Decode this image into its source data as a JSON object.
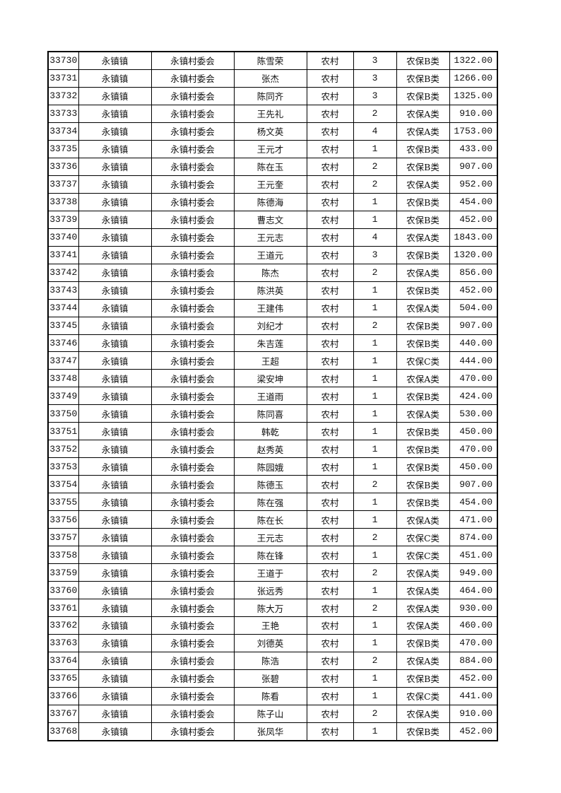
{
  "rows": [
    [
      "33730",
      "永镇镇",
      "永镇村委会",
      "陈雪荣",
      "农村",
      "3",
      "农保B类",
      "1322.00"
    ],
    [
      "33731",
      "永镇镇",
      "永镇村委会",
      "张杰",
      "农村",
      "3",
      "农保B类",
      "1266.00"
    ],
    [
      "33732",
      "永镇镇",
      "永镇村委会",
      "陈同齐",
      "农村",
      "3",
      "农保B类",
      "1325.00"
    ],
    [
      "33733",
      "永镇镇",
      "永镇村委会",
      "王先礼",
      "农村",
      "2",
      "农保A类",
      "910.00"
    ],
    [
      "33734",
      "永镇镇",
      "永镇村委会",
      "杨文英",
      "农村",
      "4",
      "农保A类",
      "1753.00"
    ],
    [
      "33735",
      "永镇镇",
      "永镇村委会",
      "王元才",
      "农村",
      "1",
      "农保B类",
      "433.00"
    ],
    [
      "33736",
      "永镇镇",
      "永镇村委会",
      "陈在玉",
      "农村",
      "2",
      "农保B类",
      "907.00"
    ],
    [
      "33737",
      "永镇镇",
      "永镇村委会",
      "王元奎",
      "农村",
      "2",
      "农保A类",
      "952.00"
    ],
    [
      "33738",
      "永镇镇",
      "永镇村委会",
      "陈德海",
      "农村",
      "1",
      "农保B类",
      "454.00"
    ],
    [
      "33739",
      "永镇镇",
      "永镇村委会",
      "曹志文",
      "农村",
      "1",
      "农保B类",
      "452.00"
    ],
    [
      "33740",
      "永镇镇",
      "永镇村委会",
      "王元志",
      "农村",
      "4",
      "农保A类",
      "1843.00"
    ],
    [
      "33741",
      "永镇镇",
      "永镇村委会",
      "王道元",
      "农村",
      "3",
      "农保B类",
      "1320.00"
    ],
    [
      "33742",
      "永镇镇",
      "永镇村委会",
      "陈杰",
      "农村",
      "2",
      "农保A类",
      "856.00"
    ],
    [
      "33743",
      "永镇镇",
      "永镇村委会",
      "陈洪英",
      "农村",
      "1",
      "农保B类",
      "452.00"
    ],
    [
      "33744",
      "永镇镇",
      "永镇村委会",
      "王建伟",
      "农村",
      "1",
      "农保A类",
      "504.00"
    ],
    [
      "33745",
      "永镇镇",
      "永镇村委会",
      "刘纪才",
      "农村",
      "2",
      "农保B类",
      "907.00"
    ],
    [
      "33746",
      "永镇镇",
      "永镇村委会",
      "朱吉莲",
      "农村",
      "1",
      "农保B类",
      "440.00"
    ],
    [
      "33747",
      "永镇镇",
      "永镇村委会",
      "王超",
      "农村",
      "1",
      "农保C类",
      "444.00"
    ],
    [
      "33748",
      "永镇镇",
      "永镇村委会",
      "梁安坤",
      "农村",
      "1",
      "农保A类",
      "470.00"
    ],
    [
      "33749",
      "永镇镇",
      "永镇村委会",
      "王道雨",
      "农村",
      "1",
      "农保B类",
      "424.00"
    ],
    [
      "33750",
      "永镇镇",
      "永镇村委会",
      "陈同喜",
      "农村",
      "1",
      "农保A类",
      "530.00"
    ],
    [
      "33751",
      "永镇镇",
      "永镇村委会",
      "韩乾",
      "农村",
      "1",
      "农保B类",
      "450.00"
    ],
    [
      "33752",
      "永镇镇",
      "永镇村委会",
      "赵秀英",
      "农村",
      "1",
      "农保B类",
      "470.00"
    ],
    [
      "33753",
      "永镇镇",
      "永镇村委会",
      "陈园娥",
      "农村",
      "1",
      "农保B类",
      "450.00"
    ],
    [
      "33754",
      "永镇镇",
      "永镇村委会",
      "陈德玉",
      "农村",
      "2",
      "农保B类",
      "907.00"
    ],
    [
      "33755",
      "永镇镇",
      "永镇村委会",
      "陈在强",
      "农村",
      "1",
      "农保B类",
      "454.00"
    ],
    [
      "33756",
      "永镇镇",
      "永镇村委会",
      "陈在长",
      "农村",
      "1",
      "农保A类",
      "471.00"
    ],
    [
      "33757",
      "永镇镇",
      "永镇村委会",
      "王元志",
      "农村",
      "2",
      "农保C类",
      "874.00"
    ],
    [
      "33758",
      "永镇镇",
      "永镇村委会",
      "陈在锋",
      "农村",
      "1",
      "农保C类",
      "451.00"
    ],
    [
      "33759",
      "永镇镇",
      "永镇村委会",
      "王道于",
      "农村",
      "2",
      "农保A类",
      "949.00"
    ],
    [
      "33760",
      "永镇镇",
      "永镇村委会",
      "张远秀",
      "农村",
      "1",
      "农保A类",
      "464.00"
    ],
    [
      "33761",
      "永镇镇",
      "永镇村委会",
      "陈大万",
      "农村",
      "2",
      "农保A类",
      "930.00"
    ],
    [
      "33762",
      "永镇镇",
      "永镇村委会",
      "王艳",
      "农村",
      "1",
      "农保A类",
      "460.00"
    ],
    [
      "33763",
      "永镇镇",
      "永镇村委会",
      "刘德英",
      "农村",
      "1",
      "农保B类",
      "470.00"
    ],
    [
      "33764",
      "永镇镇",
      "永镇村委会",
      "陈浩",
      "农村",
      "2",
      "农保A类",
      "884.00"
    ],
    [
      "33765",
      "永镇镇",
      "永镇村委会",
      "张碧",
      "农村",
      "1",
      "农保B类",
      "452.00"
    ],
    [
      "33766",
      "永镇镇",
      "永镇村委会",
      "陈看",
      "农村",
      "1",
      "农保C类",
      "441.00"
    ],
    [
      "33767",
      "永镇镇",
      "永镇村委会",
      "陈子山",
      "农村",
      "2",
      "农保A类",
      "910.00"
    ],
    [
      "33768",
      "永镇镇",
      "永镇村委会",
      "张凤华",
      "农村",
      "1",
      "农保B类",
      "452.00"
    ]
  ]
}
